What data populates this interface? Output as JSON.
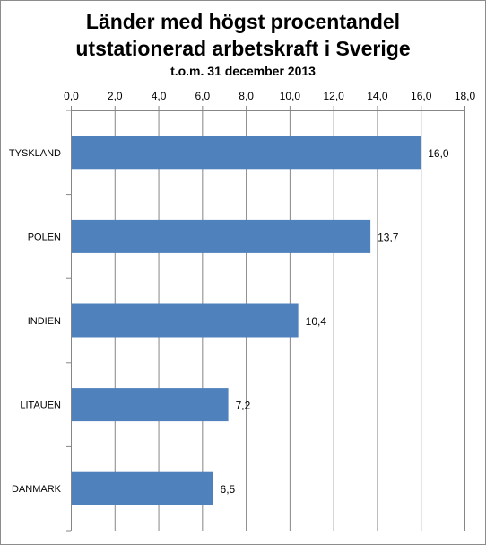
{
  "chart_data": {
    "type": "bar",
    "orientation": "horizontal",
    "title": "Länder med högst procentandel",
    "title_line2": "utstationerad arbetskraft i Sverige",
    "subtitle": "t.o.m. 31 december 2013",
    "categories": [
      "TYSKLAND",
      "POLEN",
      "INDIEN",
      "LITAUEN",
      "DANMARK"
    ],
    "values": [
      16.0,
      13.7,
      10.4,
      7.2,
      6.5
    ],
    "value_labels": [
      "16,0",
      "13,7",
      "10,4",
      "7,2",
      "6,5"
    ],
    "xlim": [
      0,
      18
    ],
    "ticks": [
      "0,0",
      "2,0",
      "4,0",
      "6,0",
      "8,0",
      "10,0",
      "12,0",
      "14,0",
      "16,0",
      "18,0"
    ],
    "axis_position": "top",
    "grid": true,
    "bar_color": "#4f81bd",
    "grid_color": "#868686"
  }
}
